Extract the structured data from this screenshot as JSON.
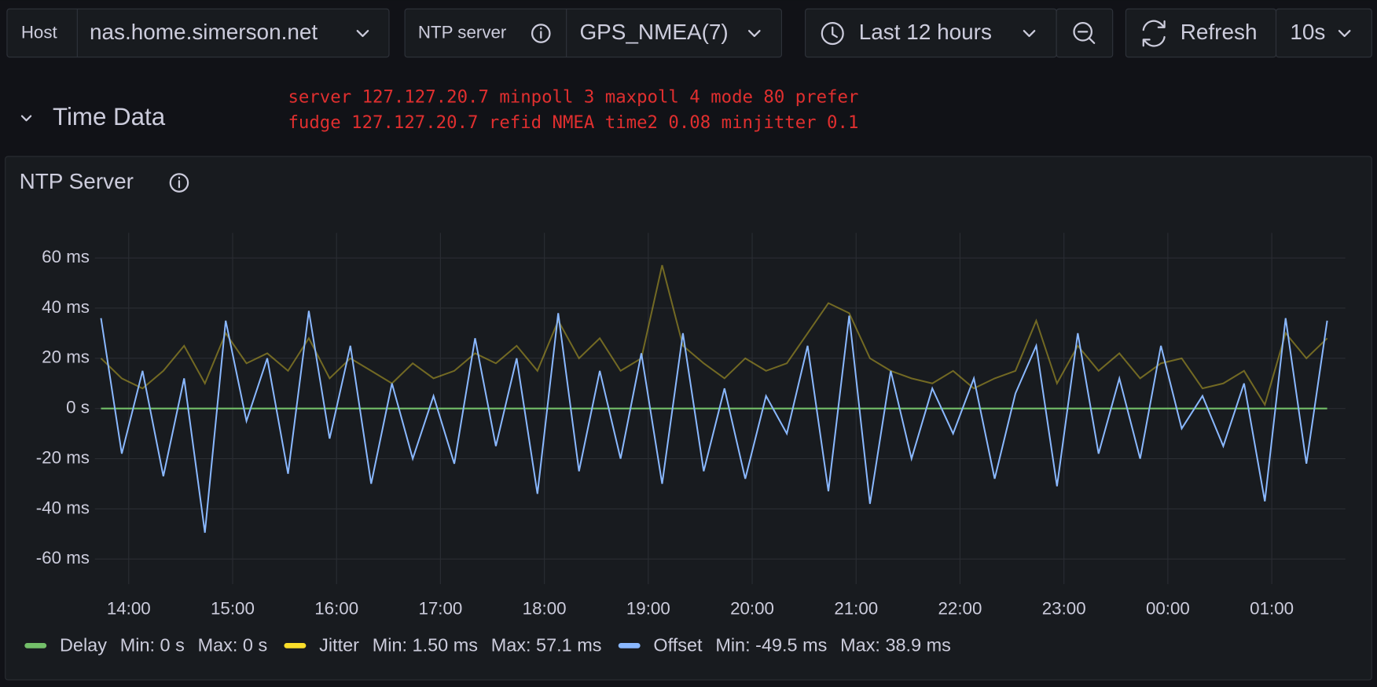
{
  "toolbar": {
    "host_label": "Host",
    "host_value": "nas.home.simerson.net",
    "ntp_label": "NTP server",
    "ntp_value": "GPS_NMEA(7)",
    "time_range": "Last 12 hours",
    "refresh": "Refresh",
    "refresh_interval": "10s"
  },
  "row_title": "Time Data",
  "annotation": [
    "server 127.127.20.7 minpoll 3 maxpoll 4 mode 80 prefer",
    "fudge 127.127.20.7 refid NMEA time2 0.08 minjitter 0.1"
  ],
  "chart_data": {
    "type": "line",
    "title": "NTP Server",
    "x": [
      "13:44",
      "13:56",
      "14:08",
      "14:20",
      "14:32",
      "14:44",
      "14:56",
      "15:08",
      "15:20",
      "15:32",
      "15:44",
      "15:56",
      "16:08",
      "16:20",
      "16:32",
      "16:44",
      "16:56",
      "17:08",
      "17:20",
      "17:32",
      "17:44",
      "17:56",
      "18:08",
      "18:20",
      "18:32",
      "18:44",
      "18:56",
      "19:08",
      "19:20",
      "19:32",
      "19:44",
      "19:56",
      "20:08",
      "20:20",
      "20:32",
      "20:44",
      "20:56",
      "21:08",
      "21:20",
      "21:32",
      "21:44",
      "21:56",
      "22:08",
      "22:20",
      "22:32",
      "22:44",
      "22:56",
      "23:08",
      "23:20",
      "23:32",
      "23:44",
      "23:56",
      "00:08",
      "00:20",
      "00:32",
      "00:44",
      "00:56",
      "01:08",
      "01:20",
      "01:32"
    ],
    "series": [
      {
        "name": "Delay",
        "color": "#73bf69",
        "stats": [
          "Min: 0 s",
          "Max: 0 s"
        ],
        "values": [
          0,
          0,
          0,
          0,
          0,
          0,
          0,
          0,
          0,
          0,
          0,
          0,
          0,
          0,
          0,
          0,
          0,
          0,
          0,
          0,
          0,
          0,
          0,
          0,
          0,
          0,
          0,
          0,
          0,
          0,
          0,
          0,
          0,
          0,
          0,
          0,
          0,
          0,
          0,
          0,
          0,
          0,
          0,
          0,
          0,
          0,
          0,
          0,
          0,
          0,
          0,
          0,
          0,
          0,
          0,
          0,
          0,
          0,
          0,
          0
        ]
      },
      {
        "name": "Jitter",
        "color": "#fade2a",
        "stats": [
          "Min: 1.50 ms",
          "Max: 57.1 ms"
        ],
        "values": [
          20,
          12,
          8,
          15,
          25,
          10,
          30,
          18,
          22,
          15,
          28,
          12,
          20,
          15,
          10,
          18,
          12,
          15,
          22,
          18,
          25,
          15,
          35,
          20,
          28,
          15,
          20,
          57.1,
          25,
          18,
          12,
          20,
          15,
          18,
          30,
          42,
          38,
          20,
          15,
          12,
          10,
          15,
          8,
          12,
          15,
          35,
          10,
          25,
          15,
          22,
          12,
          18,
          20,
          8,
          10,
          15,
          1.5,
          30,
          20,
          28
        ]
      },
      {
        "name": "Offset",
        "color": "#8ab8ff",
        "stats": [
          "Min: -49.5 ms",
          "Max: 38.9 ms"
        ],
        "values": [
          36,
          -18,
          15,
          -27,
          12,
          -49.5,
          35,
          -5,
          20,
          -26,
          38.9,
          -12,
          25,
          -30,
          10,
          -20,
          5,
          -22,
          28,
          -15,
          20,
          -34,
          38,
          -25,
          15,
          -20,
          22,
          -30,
          30,
          -25,
          8,
          -28,
          5,
          -10,
          25,
          -33,
          37,
          -38,
          15,
          -20,
          8,
          -10,
          12,
          -28,
          6,
          25,
          -31,
          30,
          -18,
          12,
          -20,
          25,
          -8,
          5,
          -15,
          10,
          -37,
          36,
          -22,
          35
        ]
      }
    ],
    "xlim": [
      "13:44",
      "01:42"
    ],
    "xticks": [
      "14:00",
      "15:00",
      "16:00",
      "17:00",
      "18:00",
      "19:00",
      "20:00",
      "21:00",
      "22:00",
      "23:00",
      "00:00",
      "01:00"
    ],
    "ylim": [
      -70,
      70
    ],
    "yticks": [
      {
        "value": -60,
        "label": "-60 ms"
      },
      {
        "value": -40,
        "label": "-40 ms"
      },
      {
        "value": -20,
        "label": "-20 ms"
      },
      {
        "value": 0,
        "label": "0 s"
      },
      {
        "value": 20,
        "label": "20 ms"
      },
      {
        "value": 40,
        "label": "40 ms"
      },
      {
        "value": 60,
        "label": "60 ms"
      }
    ],
    "grid": true
  }
}
